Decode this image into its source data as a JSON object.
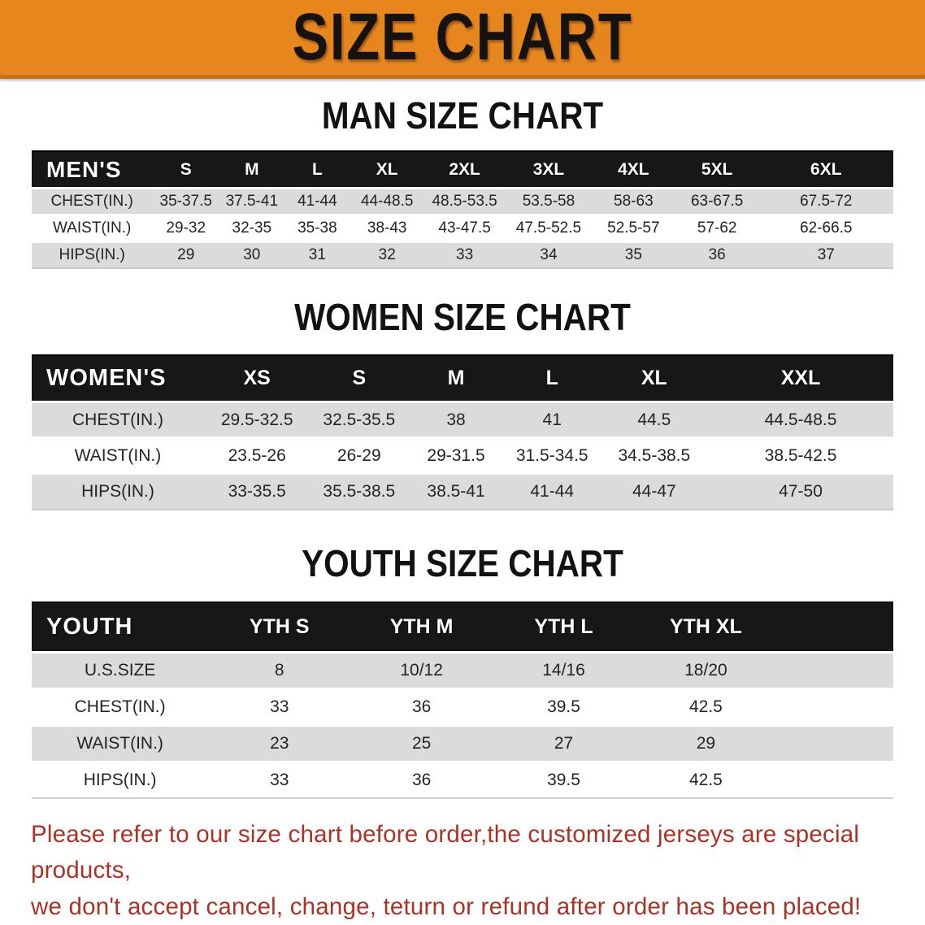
{
  "banner": {
    "title": "SIZE CHART"
  },
  "tables": [
    {
      "title": "MAN SIZE CHART",
      "header": [
        "MEN'S",
        "S",
        "M",
        "L",
        "XL",
        "2XL",
        "3XL",
        "4XL",
        "5XL",
        "6XL"
      ],
      "rows": [
        {
          "label": "CHEST(IN.)",
          "values": [
            "35-37.5",
            "37.5-41",
            "41-44",
            "44-48.5",
            "48.5-53.5",
            "53.5-58",
            "58-63",
            "63-67.5",
            "67.5-72"
          ]
        },
        {
          "label": "WAIST(IN.)",
          "values": [
            "29-32",
            "32-35",
            "35-38",
            "38-43",
            "43-47.5",
            "47.5-52.5",
            "52.5-57",
            "57-62",
            "62-66.5"
          ]
        },
        {
          "label": "HIPS(IN.)",
          "values": [
            "29",
            "30",
            "31",
            "32",
            "33",
            "34",
            "35",
            "36",
            "37"
          ]
        }
      ]
    },
    {
      "title": "WOMEN SIZE CHART",
      "header": [
        "WOMEN'S",
        "XS",
        "S",
        "M",
        "L",
        "XL",
        "XXL"
      ],
      "rows": [
        {
          "label": "CHEST(IN.)",
          "values": [
            "29.5-32.5",
            "32.5-35.5",
            "38",
            "41",
            "44.5",
            "44.5-48.5"
          ]
        },
        {
          "label": "WAIST(IN.)",
          "values": [
            "23.5-26",
            "26-29",
            "29-31.5",
            "31.5-34.5",
            "34.5-38.5",
            "38.5-42.5"
          ]
        },
        {
          "label": "HIPS(IN.)",
          "values": [
            "33-35.5",
            "35.5-38.5",
            "38.5-41",
            "41-44",
            "44-47",
            "47-50"
          ]
        }
      ]
    },
    {
      "title": "YOUTH SIZE CHART",
      "header": [
        "YOUTH",
        "YTH S",
        "YTH M",
        "YTH L",
        "YTH XL"
      ],
      "rows": [
        {
          "label": "U.S.SIZE",
          "values": [
            "8",
            "10/12",
            "14/16",
            "18/20"
          ]
        },
        {
          "label": "CHEST(IN.)",
          "values": [
            "33",
            "36",
            "39.5",
            "42.5"
          ]
        },
        {
          "label": "WAIST(IN.)",
          "values": [
            "23",
            "25",
            "27",
            "29"
          ]
        },
        {
          "label": "HIPS(IN.)",
          "values": [
            "33",
            "36",
            "39.5",
            "42.5"
          ]
        }
      ]
    }
  ],
  "disclaimer": {
    "line1": "Please refer to our size chart before order,the customized jerseys are special products,",
    "line2": "we don't accept cancel, change, teturn or refund after order has been placed!"
  },
  "colors": {
    "banner_bg": "#E8861E",
    "banner_edge": "#C96F15",
    "header_bar": "#171717",
    "row_stripe": "#DBDBDB",
    "disclaimer_text": "#AE3126"
  }
}
